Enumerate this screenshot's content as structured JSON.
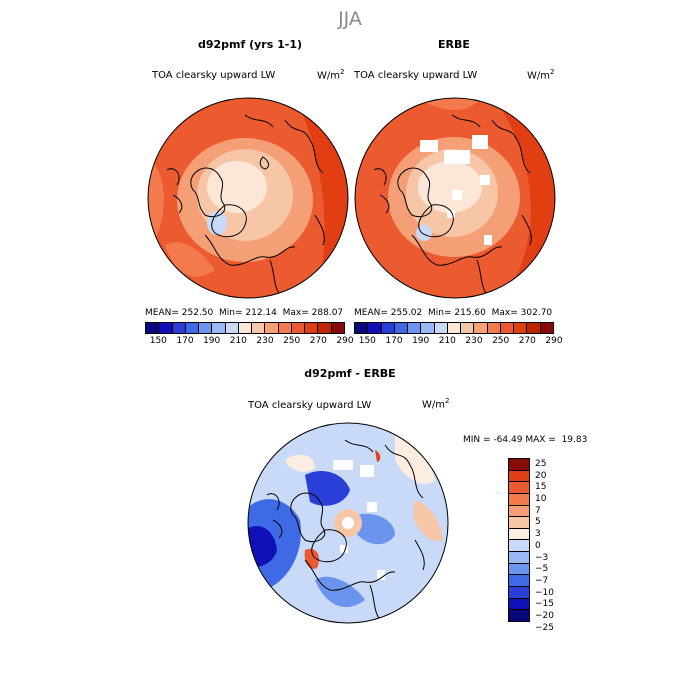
{
  "figure": {
    "season": "JJA",
    "colors": {
      "lw_scale": [
        "#08087a",
        "#1010b8",
        "#2a3fd8",
        "#3f6ae6",
        "#6b94ef",
        "#9ab8f4",
        "#c8daf8",
        "#fbe6d8",
        "#f7c6a7",
        "#f59f77",
        "#f27a4d",
        "#ec5a2f",
        "#e13e14",
        "#c02506",
        "#8b0a0a"
      ],
      "diff_scale": [
        "#08087a",
        "#1010b8",
        "#2a3fd8",
        "#3f6ae6",
        "#6b94ef",
        "#9ab8f4",
        "#c8daf8",
        "#fbeee0",
        "#f7c6a7",
        "#f59f77",
        "#f27a4d",
        "#ec5a2f",
        "#e13e14",
        "#8b0a0a"
      ]
    }
  },
  "chart_data": [
    {
      "type": "heatmap",
      "projection": "north polar stereographic",
      "title": "d92pmf (yrs 1-1)",
      "field_label": "TOA clearsky upward LW",
      "units": "W/m",
      "units_exp": "2",
      "stats": {
        "mean_label": "MEAN=",
        "mean": "252.50",
        "min_label": "Min=",
        "min": "212.14",
        "max_label": "Max=",
        "max": "288.07"
      },
      "colorbar_ticks": [
        "150",
        "170",
        "190",
        "210",
        "230",
        "250",
        "270",
        "290"
      ]
    },
    {
      "type": "heatmap",
      "projection": "north polar stereographic",
      "title": "ERBE",
      "field_label": "TOA clearsky upward LW",
      "units": "W/m",
      "units_exp": "2",
      "stats": {
        "mean_label": "MEAN=",
        "mean": "255.02",
        "min_label": "Min=",
        "min": "215.60",
        "max_label": "Max=",
        "max": "302.70"
      },
      "colorbar_ticks": [
        "150",
        "170",
        "190",
        "210",
        "230",
        "250",
        "270",
        "290"
      ]
    },
    {
      "type": "heatmap",
      "projection": "north polar stereographic",
      "title": "d92pmf - ERBE",
      "field_label": "TOA clearsky upward LW",
      "units": "W/m",
      "units_exp": "2",
      "stats": {
        "min_label": "MIN =",
        "min": "-64.49",
        "max_label": "MAX =",
        "max": "19.83"
      },
      "colorbar_ticks": [
        "25",
        "20",
        "15",
        "10",
        "7",
        "5",
        "3",
        "0",
        "−3",
        "−5",
        "−7",
        "−10",
        "−15",
        "−20",
        "−25"
      ]
    }
  ]
}
